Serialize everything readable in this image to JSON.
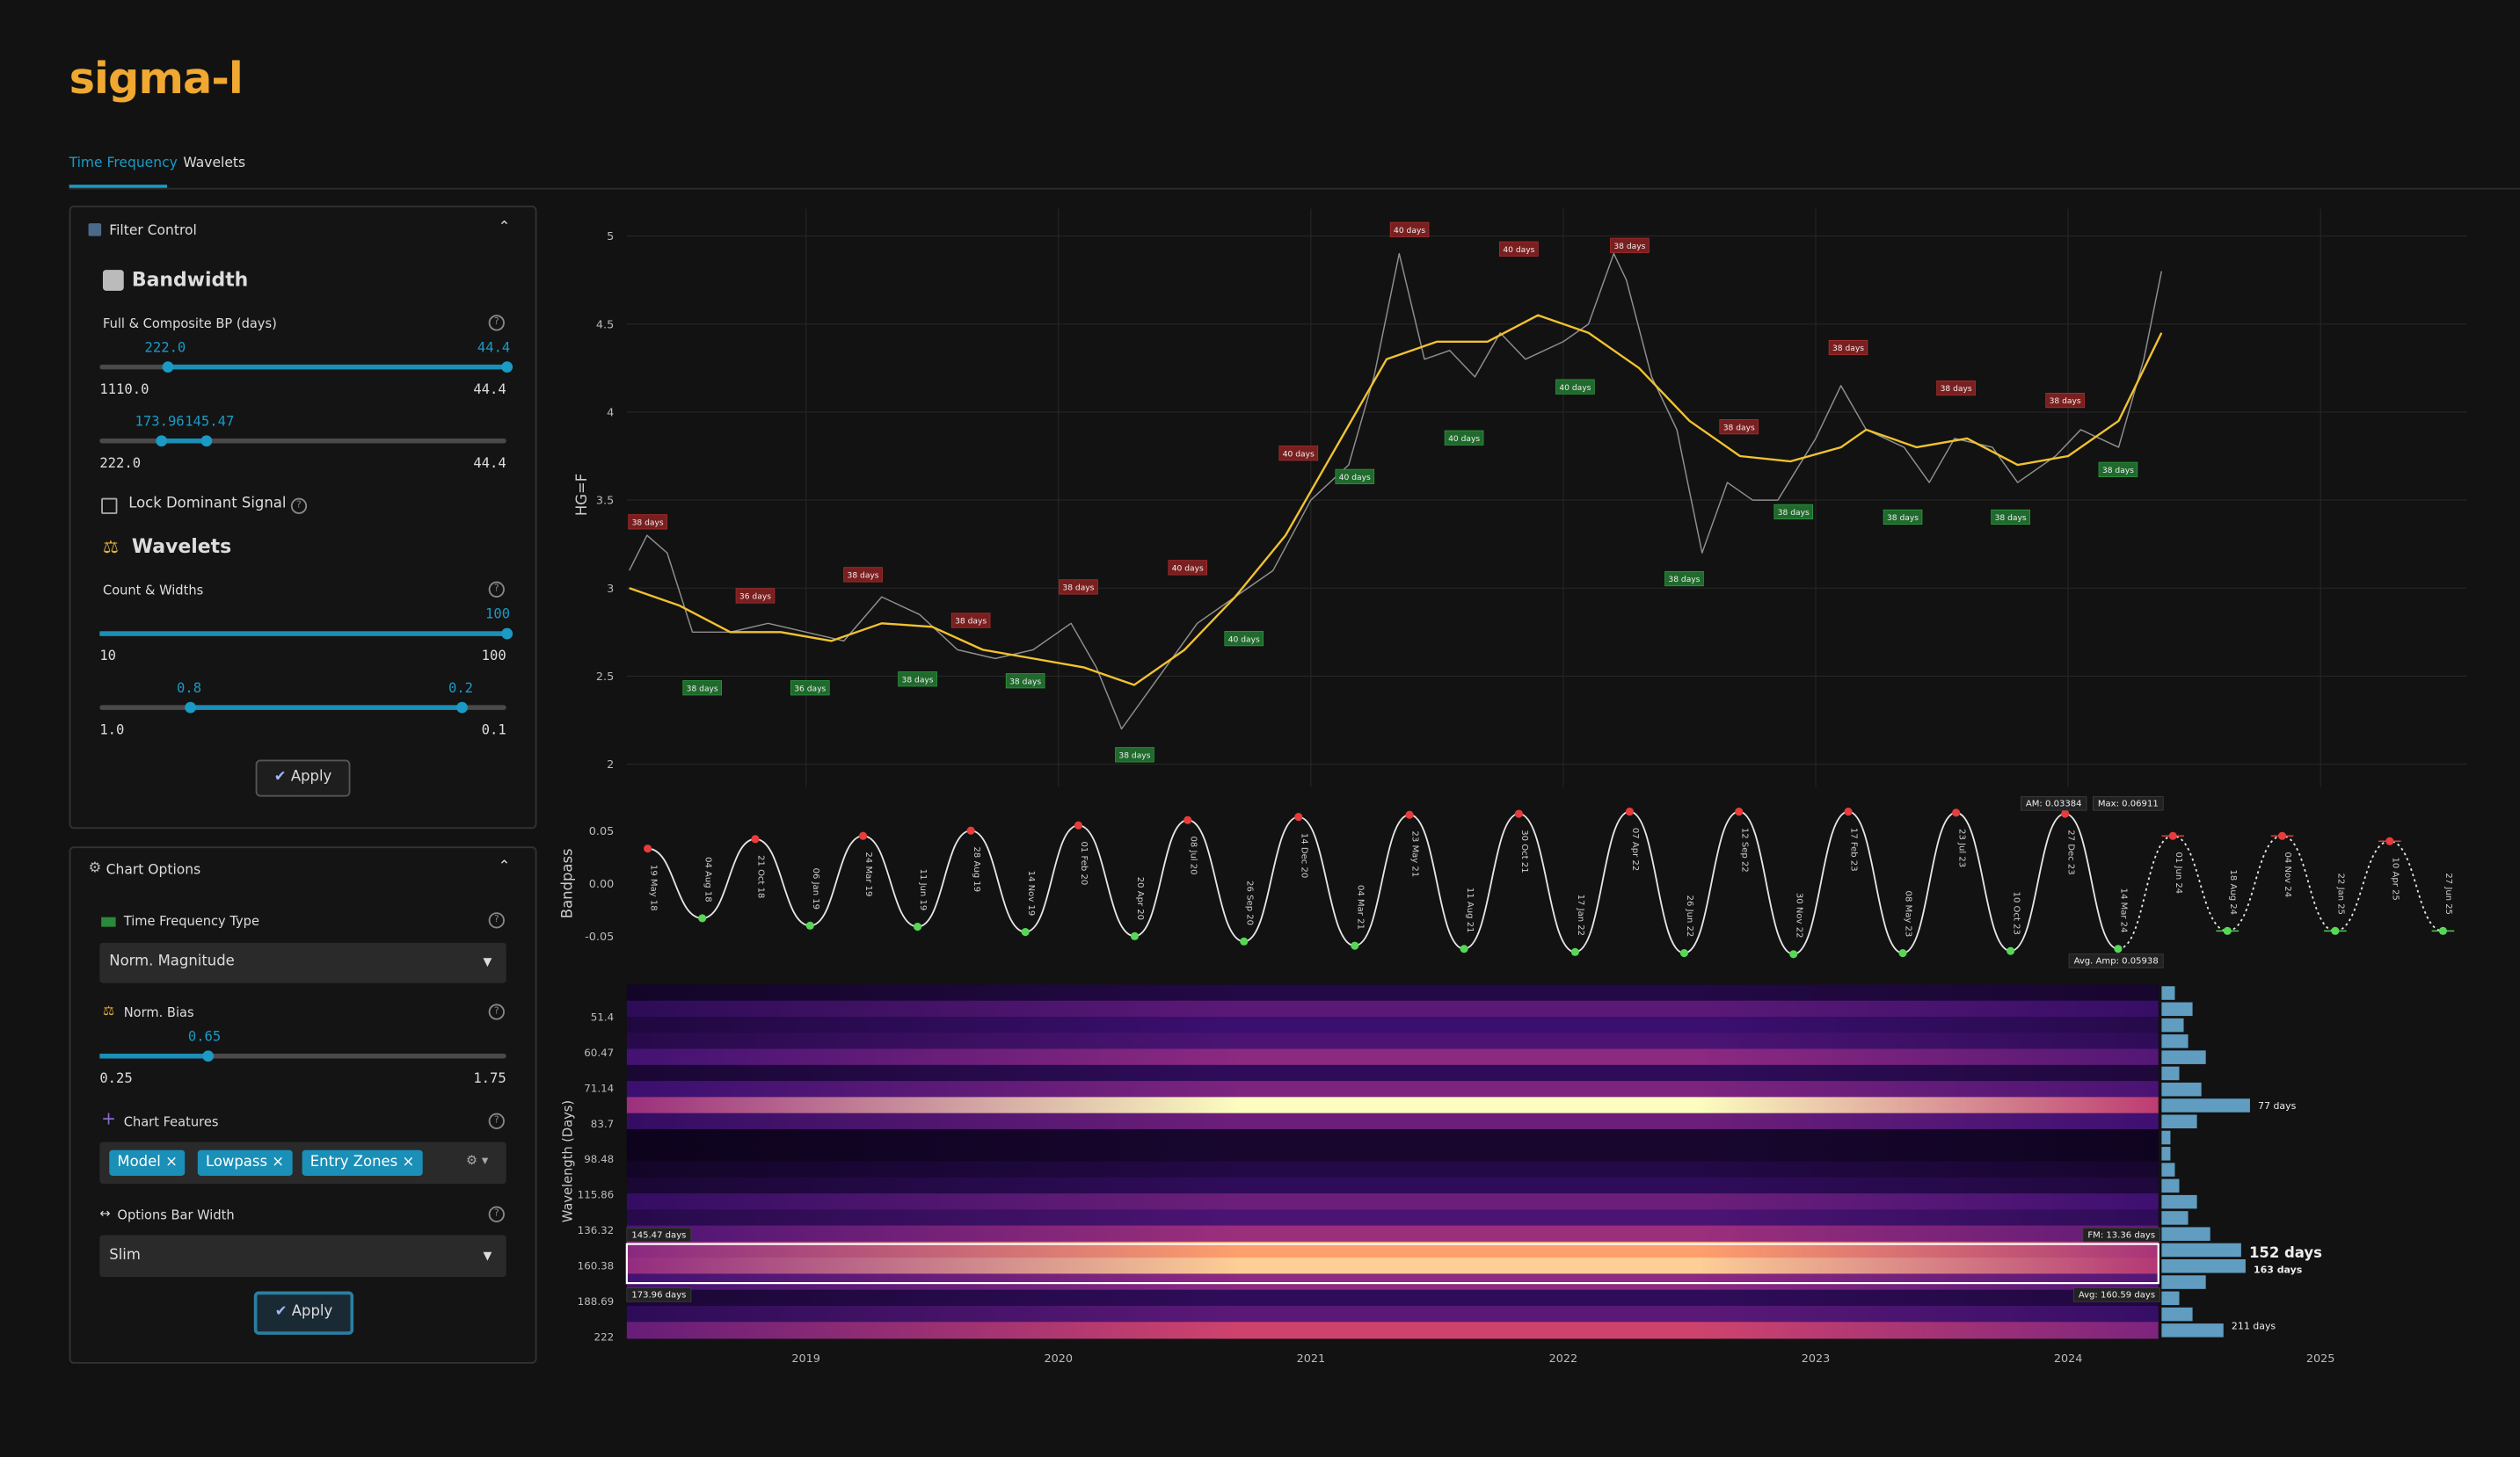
{
  "header": {
    "logo": "sigma-l",
    "tabs": [
      "Time Frequency",
      "Wavelets"
    ]
  },
  "filter_control": {
    "title": "Filter Control",
    "bandwidth": {
      "title": "Bandwidth",
      "label": "Full & Composite BP (days)",
      "slider1": {
        "handles": [
          "222.0",
          "44.4"
        ],
        "min": "1110.0",
        "max": "44.4"
      },
      "slider2": {
        "handles": [
          "173.96",
          "145.47"
        ],
        "min": "222.0",
        "max": "44.4"
      }
    },
    "lock_label": "Lock Dominant Signal",
    "wavelets": {
      "title": "Wavelets",
      "label": "Count & Widths",
      "slider1": {
        "handles": [
          "100"
        ],
        "min": "10",
        "max": "100"
      },
      "slider2": {
        "handles": [
          "0.8",
          "0.2"
        ],
        "min": "1.0",
        "max": "0.1"
      }
    },
    "apply": "Apply"
  },
  "chart_options": {
    "title": "Chart Options",
    "tf_type_label": "Time Frequency Type",
    "tf_type": "Norm. Magnitude",
    "bias_label": "Norm. Bias",
    "bias": {
      "handles": [
        "0.65"
      ],
      "min": "0.25",
      "max": "1.75"
    },
    "features_label": "Chart Features",
    "features": [
      "Model",
      "Lowpass",
      "Entry Zones"
    ],
    "bar_width_label": "Options Bar Width",
    "bar_width": "Slim",
    "apply": "Apply"
  },
  "chart_data": [
    {
      "type": "line",
      "y_label": "HG=F",
      "xlim": [
        2018.29,
        2025.58
      ],
      "xticks": [
        2019,
        2020,
        2021,
        2022,
        2023,
        2024,
        2025
      ],
      "ylim": [
        1.87,
        5.15
      ],
      "yticks": [
        2,
        2.5,
        3,
        3.5,
        4,
        4.5,
        5
      ],
      "grid": true,
      "series": [
        {
          "color": "#8f8f8f",
          "x": [
            2018.3,
            2018.37,
            2018.45,
            2018.55,
            2018.7,
            2018.85,
            2019.0,
            2019.15,
            2019.3,
            2019.45,
            2019.6,
            2019.75,
            2019.9,
            2020.05,
            2020.15,
            2020.25,
            2020.4,
            2020.55,
            2020.7,
            2020.85,
            2021.0,
            2021.15,
            2021.25,
            2021.35,
            2021.45,
            2021.55,
            2021.65,
            2021.75,
            2021.85,
            2022.0,
            2022.1,
            2022.2,
            2022.25,
            2022.35,
            2022.45,
            2022.55,
            2022.65,
            2022.75,
            2022.85,
            2023.0,
            2023.1,
            2023.2,
            2023.35,
            2023.45,
            2023.55,
            2023.7,
            2023.8,
            2023.95,
            2024.05,
            2024.2,
            2024.3,
            2024.37
          ],
          "values": [
            3.1,
            3.3,
            3.2,
            2.75,
            2.75,
            2.8,
            2.75,
            2.7,
            2.95,
            2.85,
            2.65,
            2.6,
            2.65,
            2.8,
            2.55,
            2.2,
            2.5,
            2.8,
            2.95,
            3.1,
            3.5,
            3.7,
            4.2,
            4.9,
            4.3,
            4.35,
            4.2,
            4.45,
            4.3,
            4.4,
            4.5,
            4.9,
            4.75,
            4.2,
            3.9,
            3.2,
            3.6,
            3.5,
            3.5,
            3.85,
            4.15,
            3.9,
            3.8,
            3.6,
            3.85,
            3.8,
            3.6,
            3.75,
            3.9,
            3.8,
            4.3,
            4.8
          ]
        },
        {
          "color": "#f2c230",
          "x": [
            2018.3,
            2018.5,
            2018.7,
            2018.9,
            2019.1,
            2019.3,
            2019.5,
            2019.7,
            2019.9,
            2020.1,
            2020.3,
            2020.5,
            2020.7,
            2020.9,
            2021.1,
            2021.3,
            2021.5,
            2021.7,
            2021.9,
            2022.1,
            2022.3,
            2022.5,
            2022.7,
            2022.9,
            2023.1,
            2023.2,
            2023.4,
            2023.6,
            2023.8,
            2024.0,
            2024.2,
            2024.37
          ],
          "values": [
            3.0,
            2.9,
            2.75,
            2.75,
            2.7,
            2.8,
            2.78,
            2.65,
            2.6,
            2.55,
            2.45,
            2.65,
            2.95,
            3.3,
            3.8,
            4.3,
            4.4,
            4.4,
            4.55,
            4.45,
            4.25,
            3.95,
            3.75,
            3.72,
            3.8,
            3.9,
            3.8,
            3.85,
            3.7,
            3.75,
            3.95,
            4.45
          ]
        }
      ],
      "annotations": [
        {
          "x": 2018.373,
          "y": 3.34,
          "label": "38 days",
          "kind": "peak"
        },
        {
          "x": 2018.589,
          "y": 2.47,
          "label": "38 days",
          "kind": "trough"
        },
        {
          "x": 2018.799,
          "y": 2.92,
          "label": "36 days",
          "kind": "peak"
        },
        {
          "x": 2019.016,
          "y": 2.47,
          "label": "36 days",
          "kind": "trough"
        },
        {
          "x": 2019.226,
          "y": 3.04,
          "label": "38 days",
          "kind": "peak"
        },
        {
          "x": 2019.442,
          "y": 2.52,
          "label": "38 days",
          "kind": "trough"
        },
        {
          "x": 2019.653,
          "y": 2.78,
          "label": "38 days",
          "kind": "peak"
        },
        {
          "x": 2019.869,
          "y": 2.51,
          "label": "38 days",
          "kind": "trough"
        },
        {
          "x": 2020.079,
          "y": 2.97,
          "label": "38 days",
          "kind": "peak"
        },
        {
          "x": 2020.302,
          "y": 2.09,
          "label": "38 days",
          "kind": "trough"
        },
        {
          "x": 2020.512,
          "y": 3.08,
          "label": "40 days",
          "kind": "peak"
        },
        {
          "x": 2020.735,
          "y": 2.75,
          "label": "40 days",
          "kind": "trough"
        },
        {
          "x": 2020.951,
          "y": 3.73,
          "label": "40 days",
          "kind": "peak"
        },
        {
          "x": 2021.174,
          "y": 3.67,
          "label": "40 days",
          "kind": "trough"
        },
        {
          "x": 2021.391,
          "y": 5.0,
          "label": "40 days",
          "kind": "peak"
        },
        {
          "x": 2021.607,
          "y": 3.89,
          "label": "40 days",
          "kind": "trough"
        },
        {
          "x": 2021.824,
          "y": 4.89,
          "label": "40 days",
          "kind": "peak"
        },
        {
          "x": 2022.047,
          "y": 4.18,
          "label": "40 days",
          "kind": "trough"
        },
        {
          "x": 2022.263,
          "y": 4.91,
          "label": "38 days",
          "kind": "peak"
        },
        {
          "x": 2022.479,
          "y": 3.09,
          "label": "38 days",
          "kind": "trough"
        },
        {
          "x": 2022.696,
          "y": 3.88,
          "label": "38 days",
          "kind": "peak"
        },
        {
          "x": 2022.912,
          "y": 3.47,
          "label": "38 days",
          "kind": "trough"
        },
        {
          "x": 2023.129,
          "y": 4.33,
          "label": "38 days",
          "kind": "peak"
        },
        {
          "x": 2023.345,
          "y": 3.44,
          "label": "38 days",
          "kind": "trough"
        },
        {
          "x": 2023.556,
          "y": 4.1,
          "label": "38 days",
          "kind": "peak"
        },
        {
          "x": 2023.772,
          "y": 3.44,
          "label": "38 days",
          "kind": "trough"
        },
        {
          "x": 2023.988,
          "y": 4.03,
          "label": "38 days",
          "kind": "peak"
        },
        {
          "x": 2024.198,
          "y": 3.71,
          "label": "38 days",
          "kind": "trough"
        }
      ]
    },
    {
      "type": "oscillator",
      "y_label": "Bandpass",
      "xlim": [
        2018.29,
        2025.58
      ],
      "ylim": [
        -0.07,
        0.07
      ],
      "yticks": [
        0.05,
        {
          "value": 0,
          "label": "0.00"
        },
        -0.05
      ],
      "color": "#e6e6e6",
      "forecast_from": 28,
      "x": [
        2018.373,
        2018.589,
        2018.799,
        2019.016,
        2019.226,
        2019.442,
        2019.653,
        2019.869,
        2020.079,
        2020.302,
        2020.512,
        2020.735,
        2020.951,
        2021.174,
        2021.391,
        2021.607,
        2021.824,
        2022.047,
        2022.263,
        2022.479,
        2022.696,
        2022.912,
        2023.129,
        2023.345,
        2023.556,
        2023.772,
        2023.988,
        2024.198,
        2024.415,
        2024.631,
        2024.848,
        2025.058,
        2025.274,
        2025.485
      ],
      "values": [
        0.033,
        -0.033,
        0.042,
        -0.04,
        0.045,
        -0.041,
        0.05,
        -0.046,
        0.055,
        -0.05,
        0.06,
        -0.055,
        0.063,
        -0.059,
        0.065,
        -0.062,
        0.066,
        -0.065,
        0.068,
        -0.066,
        0.068,
        -0.067,
        0.068,
        -0.066,
        0.067,
        -0.064,
        0.066,
        -0.062,
        0.045,
        -0.045,
        0.045,
        -0.045,
        0.04,
        -0.045
      ],
      "labels": [
        "19 May 18",
        "04 Aug 18",
        "21 Oct 18",
        "06 Jan 19",
        "24 Mar 19",
        "11 Jun 19",
        "28 Aug 19",
        "14 Nov 19",
        "01 Feb 20",
        "20 Apr 20",
        "08 Jul 20",
        "26 Sep 20",
        "14 Dec 20",
        "04 Mar 21",
        "23 May 21",
        "11 Aug 21",
        "30 Oct 21",
        "17 Jan 22",
        "07 Apr 22",
        "26 Jun 22",
        "12 Sep 22",
        "30 Nov 22",
        "17 Feb 23",
        "08 May 23",
        "23 Jul 23",
        "10 Oct 23",
        "27 Dec 23",
        "14 Mar 24",
        "01 Jun 24",
        "18 Aug 24",
        "04 Nov 24",
        "22 Jan 25",
        "10 Apr 25",
        "27 Jun 25"
      ],
      "annotations": [
        "AM: 0.03384",
        "Max: 0.06911",
        "Avg. Amp: 0.05938"
      ]
    },
    {
      "type": "heatmap",
      "y_label": "Wavelength (Days)",
      "yticks": [
        51.4,
        60.47,
        71.14,
        83.7,
        98.48,
        115.86,
        136.32,
        160.38,
        188.69,
        222
      ],
      "intensity": [
        0.15,
        0.35,
        0.25,
        0.3,
        0.5,
        0.2,
        0.45,
        1.0,
        0.4,
        0.1,
        0.1,
        0.15,
        0.2,
        0.4,
        0.3,
        0.55,
        0.9,
        0.95,
        0.5,
        0.2,
        0.35,
        0.7
      ],
      "selection": [
        {
          "value": 145.47,
          "label": "145.47 days"
        },
        {
          "value": 173.96,
          "label": "173.96 days"
        }
      ],
      "annotations": [
        "FM: 13.36 days",
        "Avg: 160.59 days"
      ],
      "peaks": [
        {
          "value": 77,
          "label": "77 days"
        },
        {
          "value": 152,
          "label": "152 days"
        },
        {
          "value": 163,
          "label": "163 days"
        },
        {
          "value": 211,
          "label": "211 days"
        }
      ]
    }
  ]
}
